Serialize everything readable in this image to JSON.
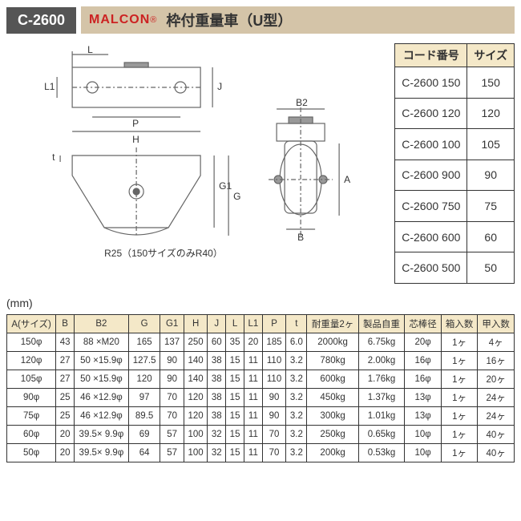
{
  "header": {
    "code": "C-2600",
    "brand": "MALCON",
    "title": "枠付重量車（U型）"
  },
  "diagram": {
    "note": "R25（150サイズのみR40）",
    "unit": "(mm)",
    "labels": {
      "L": "L",
      "L1": "L1",
      "J": "J",
      "P": "P",
      "H": "H",
      "t": "t",
      "G1": "G1",
      "G": "G",
      "A": "A",
      "B": "B",
      "B2": "B2"
    }
  },
  "sideTable": {
    "headers": [
      "コード番号",
      "サイズ"
    ],
    "rows": [
      [
        "C-2600 150",
        "150"
      ],
      [
        "C-2600 120",
        "120"
      ],
      [
        "C-2600 100",
        "105"
      ],
      [
        "C-2600 900",
        "90"
      ],
      [
        "C-2600 750",
        "75"
      ],
      [
        "C-2600 600",
        "60"
      ],
      [
        "C-2600 500",
        "50"
      ]
    ]
  },
  "specTable": {
    "headers": [
      "A(サイズ)",
      "B",
      "B2",
      "G",
      "G1",
      "H",
      "J",
      "L",
      "L1",
      "P",
      "t",
      "耐重量2ヶ",
      "製品自重",
      "芯棒径",
      "箱入数",
      "甲入数"
    ],
    "rows": [
      [
        "150φ",
        "43",
        "88 ×M20",
        "165",
        "137",
        "250",
        "60",
        "35",
        "20",
        "185",
        "6.0",
        "2000kg",
        "6.75kg",
        "20φ",
        "1ヶ",
        "4ヶ"
      ],
      [
        "120φ",
        "27",
        "50 ×15.9φ",
        "127.5",
        "90",
        "140",
        "38",
        "15",
        "11",
        "110",
        "3.2",
        "780kg",
        "2.00kg",
        "16φ",
        "1ヶ",
        "16ヶ"
      ],
      [
        "105φ",
        "27",
        "50 ×15.9φ",
        "120",
        "90",
        "140",
        "38",
        "15",
        "11",
        "110",
        "3.2",
        "600kg",
        "1.76kg",
        "16φ",
        "1ヶ",
        "20ヶ"
      ],
      [
        "90φ",
        "25",
        "46 ×12.9φ",
        "97",
        "70",
        "120",
        "38",
        "15",
        "11",
        "90",
        "3.2",
        "450kg",
        "1.37kg",
        "13φ",
        "1ヶ",
        "24ヶ"
      ],
      [
        "75φ",
        "25",
        "46 ×12.9φ",
        "89.5",
        "70",
        "120",
        "38",
        "15",
        "11",
        "90",
        "3.2",
        "300kg",
        "1.01kg",
        "13φ",
        "1ヶ",
        "24ヶ"
      ],
      [
        "60φ",
        "20",
        "39.5× 9.9φ",
        "69",
        "57",
        "100",
        "32",
        "15",
        "11",
        "70",
        "3.2",
        "250kg",
        "0.65kg",
        "10φ",
        "1ヶ",
        "40ヶ"
      ],
      [
        "50φ",
        "20",
        "39.5× 9.9φ",
        "64",
        "57",
        "100",
        "32",
        "15",
        "11",
        "70",
        "3.2",
        "200kg",
        "0.53kg",
        "10φ",
        "1ヶ",
        "40ヶ"
      ]
    ]
  },
  "style": {
    "colors": {
      "badge_bg": "#555",
      "band_bg": "#d4c4a8",
      "brand": "#c22",
      "border": "#333",
      "th_bg": "#f4e8c8",
      "line": "#666"
    }
  }
}
